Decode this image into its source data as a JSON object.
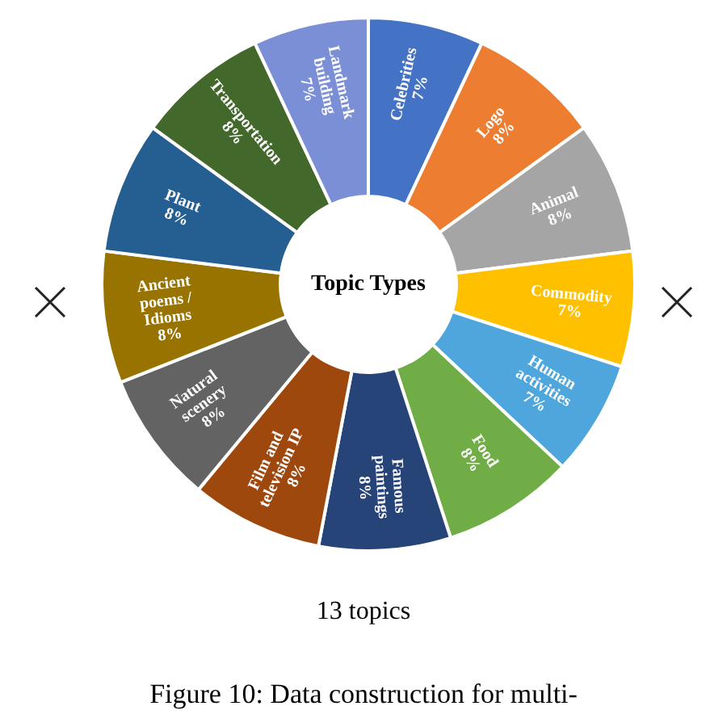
{
  "chart_data": {
    "type": "donut",
    "title": "Topic Types",
    "categories": [
      "Celebrities",
      "Logo",
      "Animal",
      "Commodity",
      "Human activities",
      "Food",
      "Famous paintings",
      "Film and television IP",
      "Natural scenery",
      "Ancient poems / Idioms",
      "Plant",
      "Transportation",
      "Landmark building"
    ],
    "values": [
      7,
      8,
      8,
      7,
      7,
      8,
      8,
      8,
      8,
      8,
      8,
      8,
      7
    ],
    "value_labels": [
      "7%",
      "8%",
      "8%",
      "7%",
      "7%",
      "8%",
      "8%",
      "8%",
      "8%",
      "8%",
      "8%",
      "8%",
      "7%"
    ],
    "colors": [
      "#4472c4",
      "#ed7d31",
      "#a5a5a5",
      "#ffc000",
      "#4ea6dc",
      "#70ad47",
      "#264478",
      "#9e480e",
      "#636363",
      "#997300",
      "#255e91",
      "#43682b",
      "#7b8fd6"
    ],
    "legend": false,
    "annotations": [
      "13 topics",
      "Figure 10: Data construction for multi-"
    ]
  }
}
